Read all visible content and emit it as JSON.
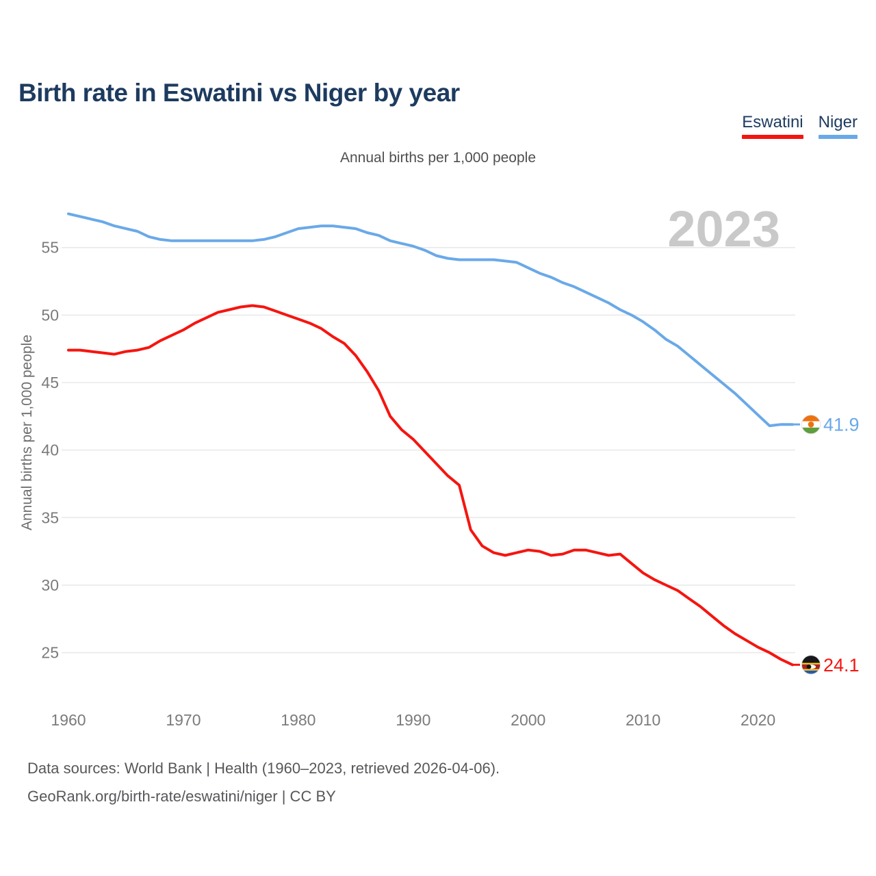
{
  "page": {
    "title": "Birth rate in Eswatini vs Niger by year"
  },
  "legend": {
    "items": [
      {
        "label": "Eswatini",
        "color": "#f5150f"
      },
      {
        "label": "Niger",
        "color": "#6aa9e8"
      }
    ]
  },
  "subtitle": "Annual births per 1,000 people",
  "watermark": "2023",
  "chart_data": {
    "type": "line",
    "title": "Birth rate in Eswatini vs Niger by year",
    "subtitle": "Annual births per 1,000 people",
    "ylabel": "Annual births per 1,000 people",
    "xlabel": "",
    "grid": true,
    "legend_position": "top-right",
    "xlim": [
      1960,
      2023
    ],
    "ylim": [
      23,
      58.5
    ],
    "xticks": [
      1960,
      1970,
      1980,
      1990,
      2000,
      2010,
      2020
    ],
    "yticks": [
      25,
      30,
      35,
      40,
      45,
      50,
      55
    ],
    "x": [
      1960,
      1961,
      1962,
      1963,
      1964,
      1965,
      1966,
      1967,
      1968,
      1969,
      1970,
      1971,
      1972,
      1973,
      1974,
      1975,
      1976,
      1977,
      1978,
      1979,
      1980,
      1981,
      1982,
      1983,
      1984,
      1985,
      1986,
      1987,
      1988,
      1989,
      1990,
      1991,
      1992,
      1993,
      1994,
      1995,
      1996,
      1997,
      1998,
      1999,
      2000,
      2001,
      2002,
      2003,
      2004,
      2005,
      2006,
      2007,
      2008,
      2009,
      2010,
      2011,
      2012,
      2013,
      2014,
      2015,
      2016,
      2017,
      2018,
      2019,
      2020,
      2021,
      2022,
      2023
    ],
    "series": [
      {
        "name": "Eswatini",
        "color": "#f5150f",
        "end_label": "24.1",
        "flag": "eswatini",
        "values": [
          47.4,
          47.4,
          47.3,
          47.2,
          47.1,
          47.3,
          47.4,
          47.6,
          48.1,
          48.5,
          48.9,
          49.4,
          49.8,
          50.2,
          50.4,
          50.6,
          50.7,
          50.6,
          50.3,
          50.0,
          49.7,
          49.4,
          49.0,
          48.4,
          47.9,
          47.0,
          45.8,
          44.4,
          42.5,
          41.5,
          40.8,
          39.9,
          39.0,
          38.1,
          37.4,
          34.1,
          32.9,
          32.4,
          32.2,
          32.4,
          32.6,
          32.5,
          32.2,
          32.3,
          32.6,
          32.6,
          32.4,
          32.2,
          32.3,
          31.6,
          30.9,
          30.4,
          30.0,
          29.6,
          29.0,
          28.4,
          27.7,
          27.0,
          26.4,
          25.9,
          25.4,
          25.0,
          24.5,
          24.1
        ]
      },
      {
        "name": "Niger",
        "color": "#6aa9e8",
        "end_label": "41.9",
        "flag": "niger",
        "values": [
          57.5,
          57.3,
          57.1,
          56.9,
          56.6,
          56.4,
          56.2,
          55.8,
          55.6,
          55.5,
          55.5,
          55.5,
          55.5,
          55.5,
          55.5,
          55.5,
          55.5,
          55.6,
          55.8,
          56.1,
          56.4,
          56.5,
          56.6,
          56.6,
          56.5,
          56.4,
          56.1,
          55.9,
          55.5,
          55.3,
          55.1,
          54.8,
          54.4,
          54.2,
          54.1,
          54.1,
          54.1,
          54.1,
          54.0,
          53.9,
          53.5,
          53.1,
          52.8,
          52.4,
          52.1,
          51.7,
          51.3,
          50.9,
          50.4,
          50.0,
          49.5,
          48.9,
          48.2,
          47.7,
          47.0,
          46.3,
          45.6,
          44.9,
          44.2,
          43.4,
          42.6,
          41.8,
          41.9,
          41.9
        ]
      }
    ]
  },
  "footer": {
    "line1": "Data sources: World Bank | Health (1960–2023, retrieved 2026-04-06).",
    "line2": "GeoRank.org/birth-rate/eswatini/niger | CC BY"
  },
  "colors": {
    "title": "#1d3b5f",
    "axis_text": "#7b7b7b",
    "grid": "#e8e8e8",
    "watermark": "#c9c9c9",
    "footer_text": "#57575a"
  }
}
